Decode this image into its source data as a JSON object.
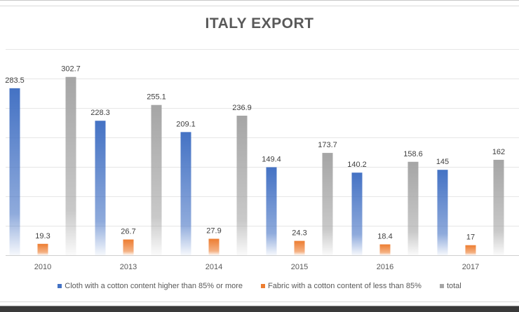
{
  "chart_data": {
    "type": "bar",
    "title": "ITALY EXPORT",
    "xlabel": "",
    "ylabel": "",
    "ylim": [
      0,
      350
    ],
    "grid": true,
    "y_tick_step": 50,
    "legend_position": "bottom",
    "categories": [
      "2010",
      "2013",
      "2014",
      "2015",
      "2016",
      "2017"
    ],
    "series": [
      {
        "name": "Cloth with a cotton content higher than 85% or more",
        "color": "#4472c4",
        "values": [
          283.5,
          228.3,
          209.1,
          149.4,
          140.2,
          145
        ],
        "labels": [
          "283.5",
          "228.3",
          "209.1",
          "149.4",
          "140.2",
          "145"
        ]
      },
      {
        "name": "Fabric with a cotton content of less than 85%",
        "color": "#ed7d31",
        "values": [
          19.3,
          26.7,
          27.9,
          24.3,
          18.4,
          17
        ],
        "labels": [
          "19.3",
          "26.7",
          "27.9",
          "24.3",
          "18.4",
          "17"
        ]
      },
      {
        "name": "total",
        "color": "#a5a5a5",
        "values": [
          302.7,
          255.1,
          236.9,
          173.7,
          158.6,
          162
        ],
        "labels": [
          "302.7",
          "255.1",
          "236.9",
          "173.7",
          "158.6",
          "162"
        ]
      }
    ]
  }
}
